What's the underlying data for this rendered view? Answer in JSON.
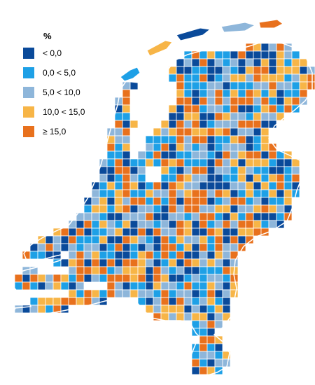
{
  "legend": {
    "title": "%",
    "items": [
      {
        "label": "< 0,0",
        "color": "#0a4a9a"
      },
      {
        "label": "0,0 < 5,0",
        "color": "#1ea0e6"
      },
      {
        "label": "5,0 < 10,0",
        "color": "#8eb6da"
      },
      {
        "label": "10,0 < 15,0",
        "color": "#f7b547"
      },
      {
        "label": "≥ 15,0",
        "color": "#e8711d"
      }
    ]
  },
  "map": {
    "region": "Netherlands",
    "unit": "municipality",
    "water_color": "#ffffff"
  }
}
